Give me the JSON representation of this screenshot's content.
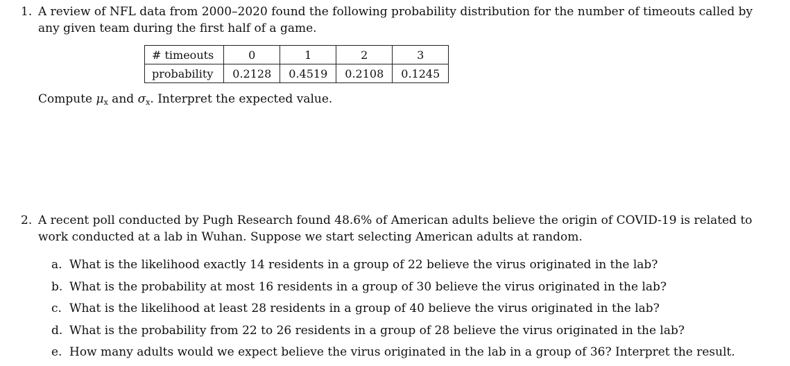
{
  "q1": {
    "number": "1.",
    "line1": "A review of NFL data from 2000–2020 found the following probability distribution for the number of timeouts called by",
    "line2": "any given team during the first half of a game.",
    "table": {
      "row_headers": [
        "# timeouts",
        "probability"
      ],
      "timeouts": [
        "0",
        "1",
        "2",
        "3"
      ],
      "probabilities": [
        "0.2128",
        "0.4519",
        "0.2108",
        "0.1245"
      ]
    },
    "compute_prefix": "Compute ",
    "mu": "μ",
    "sub_x": "x",
    "and": " and ",
    "sigma": "σ",
    "compute_suffix": ". Interpret the expected value."
  },
  "q2": {
    "number": "2.",
    "line1": "A recent poll conducted by Pugh Research found 48.6% of American adults believe the origin of COVID-19 is related to",
    "line2": "work conducted at a lab in Wuhan. Suppose we start selecting American adults at random.",
    "items": [
      {
        "letter": "a.",
        "text": "What is the likelihood exactly 14 residents in a group of 22 believe the virus originated in the lab?"
      },
      {
        "letter": "b.",
        "text": "What is the probability at most 16 residents in a group of 30 believe the virus originated in the lab?"
      },
      {
        "letter": "c.",
        "text": "What is the likelihood at least 28 residents in a group of 40 believe the virus originated in the lab?"
      },
      {
        "letter": "d.",
        "text": "What is the probability from 22 to 26 residents in a group of 28 believe the virus originated in the lab?"
      },
      {
        "letter": "e.",
        "text": "How many adults would we expect believe the virus originated in the lab in a group of 36? Interpret the result."
      }
    ]
  }
}
